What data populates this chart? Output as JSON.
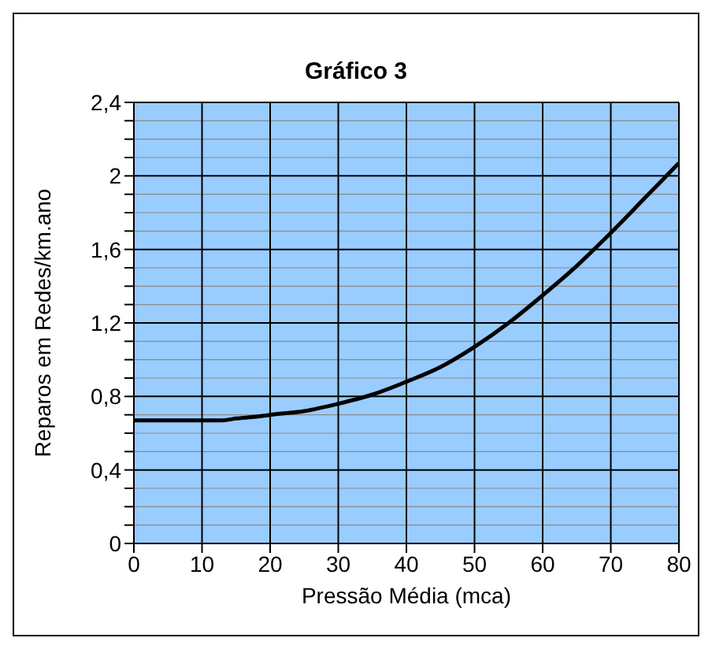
{
  "chart_data": {
    "type": "line",
    "title": "Gráfico 3",
    "xlabel": "Pressão Média (mca)",
    "ylabel": "Reparos em Redes/km.ano",
    "x": [
      0,
      5,
      10,
      13,
      15,
      18,
      20,
      25,
      30,
      35,
      40,
      45,
      50,
      55,
      60,
      65,
      70,
      75,
      80
    ],
    "series": [
      {
        "color": "#000000",
        "values": [
          0.67,
          0.67,
          0.67,
          0.67,
          0.68,
          0.69,
          0.7,
          0.72,
          0.76,
          0.81,
          0.88,
          0.96,
          1.07,
          1.2,
          1.35,
          1.51,
          1.69,
          1.88,
          2.07
        ]
      }
    ],
    "xlim": [
      0,
      80
    ],
    "xticks": [
      0,
      10,
      20,
      30,
      40,
      50,
      60,
      70,
      80
    ],
    "ylim": [
      0,
      2.4
    ],
    "yticks": [
      {
        "value": 0,
        "label": "0"
      },
      {
        "value": 0.1,
        "label": null
      },
      {
        "value": 0.2,
        "label": null
      },
      {
        "value": 0.3,
        "label": null
      },
      {
        "value": 0.4,
        "label": "0,4"
      },
      {
        "value": 0.5,
        "label": null
      },
      {
        "value": 0.6,
        "label": null
      },
      {
        "value": 0.7,
        "label": null
      },
      {
        "value": 0.8,
        "label": "0,8"
      },
      {
        "value": 0.9,
        "label": null
      },
      {
        "value": 1.0,
        "label": null
      },
      {
        "value": 1.1,
        "label": null
      },
      {
        "value": 1.2,
        "label": "1,2"
      },
      {
        "value": 1.3,
        "label": null
      },
      {
        "value": 1.4,
        "label": null
      },
      {
        "value": 1.5,
        "label": null
      },
      {
        "value": 1.6,
        "label": "1,6"
      },
      {
        "value": 1.7,
        "label": null
      },
      {
        "value": 1.8,
        "label": null
      },
      {
        "value": 1.9,
        "label": null
      },
      {
        "value": 2.0,
        "label": "2"
      },
      {
        "value": 2.1,
        "label": null
      },
      {
        "value": 2.2,
        "label": null
      },
      {
        "value": 2.3,
        "label": null
      },
      {
        "value": 2.4,
        "label": "2,4"
      }
    ],
    "grid": true,
    "marker": "none",
    "line_style": "solid"
  }
}
